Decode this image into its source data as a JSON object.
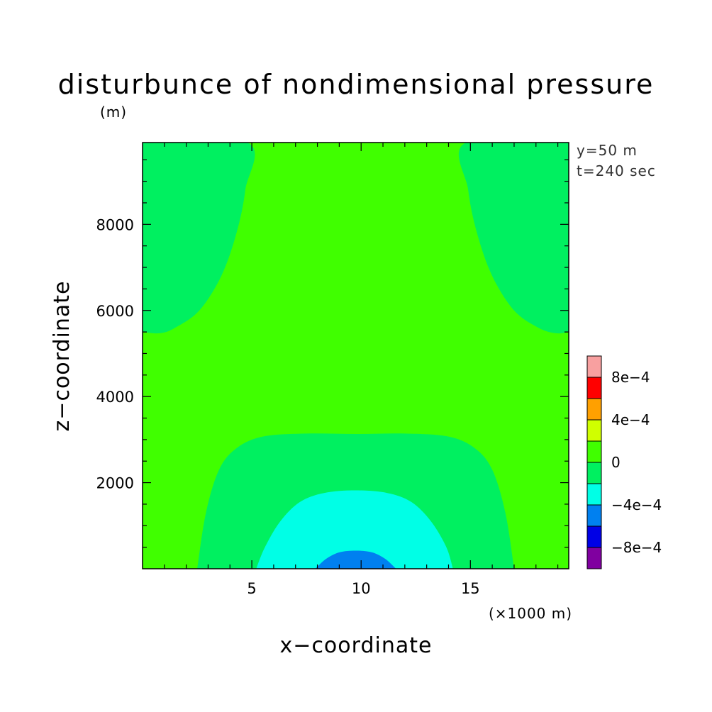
{
  "chart_data": {
    "type": "heatmap",
    "title": "disturbunce of nondimensional pressure",
    "y_unit_label": "(m)",
    "xlabel": "x−coordinate",
    "ylabel": "z−coordinate",
    "x_unit_label": "(×1000 m)",
    "annotations": [
      "y=50 m",
      "t=240 sec"
    ],
    "xlim": [
      0,
      19.5
    ],
    "ylim": [
      0,
      9900
    ],
    "x_ticks": [
      {
        "value": 5,
        "label": "5"
      },
      {
        "value": 10,
        "label": "10"
      },
      {
        "value": 15,
        "label": "15"
      }
    ],
    "y_ticks": [
      {
        "value": 2000,
        "label": "2000"
      },
      {
        "value": 4000,
        "label": "4000"
      },
      {
        "value": 6000,
        "label": "6000"
      },
      {
        "value": 8000,
        "label": "8000"
      }
    ],
    "colorbar": {
      "levels": [
        {
          "min": -0.001,
          "max": -0.0008,
          "color": "#8000a0"
        },
        {
          "min": -0.0008,
          "max": -0.0006,
          "color": "#0000e6"
        },
        {
          "min": -0.0006,
          "max": -0.0004,
          "color": "#0080f0"
        },
        {
          "min": -0.0004,
          "max": -0.0002,
          "color": "#00ffe6"
        },
        {
          "min": -0.0002,
          "max": 0,
          "color": "#00f060"
        },
        {
          "min": 0,
          "max": 0.0002,
          "color": "#40ff00"
        },
        {
          "min": 0.0002,
          "max": 0.0004,
          "color": "#d0ff00"
        },
        {
          "min": 0.0004,
          "max": 0.0006,
          "color": "#ffa000"
        },
        {
          "min": 0.0006,
          "max": 0.0008,
          "color": "#ff0000"
        },
        {
          "min": 0.0008,
          "max": 0.001,
          "color": "#f8a0a0"
        }
      ],
      "tick_labels": [
        {
          "value": -0.0008,
          "label": "−8e−4"
        },
        {
          "value": -0.0004,
          "label": "−4e−4"
        },
        {
          "value": 0,
          "label": "0"
        },
        {
          "value": 0.0004,
          "label": "4e−4"
        },
        {
          "value": 0.0008,
          "label": "8e−4"
        }
      ]
    },
    "regions": [
      {
        "level_index": 5,
        "description": "background, 0 to 2e-4",
        "boundary": [
          [
            0,
            0
          ],
          [
            19.5,
            0
          ],
          [
            19.5,
            9900
          ],
          [
            0,
            9900
          ]
        ]
      },
      {
        "level_index": 4,
        "description": "upper-left lobe",
        "boundary": [
          [
            0,
            9900
          ],
          [
            4.8,
            9900
          ],
          [
            4.7,
            8800
          ],
          [
            4.3,
            7800
          ],
          [
            3.6,
            6800
          ],
          [
            2.6,
            6000
          ],
          [
            1.5,
            5600
          ],
          [
            0.8,
            5470
          ],
          [
            0,
            5500
          ]
        ]
      },
      {
        "level_index": 4,
        "description": "upper-right lobe",
        "boundary": [
          [
            19.5,
            9900
          ],
          [
            14.8,
            9900
          ],
          [
            14.9,
            8800
          ],
          [
            15.3,
            7800
          ],
          [
            16.0,
            6800
          ],
          [
            17.0,
            6000
          ],
          [
            18.1,
            5600
          ],
          [
            18.9,
            5470
          ],
          [
            19.5,
            5500
          ]
        ]
      },
      {
        "level_index": 4,
        "description": "lower central dome",
        "boundary": [
          [
            2.5,
            0
          ],
          [
            2.9,
            1300
          ],
          [
            3.5,
            2300
          ],
          [
            4.3,
            2800
          ],
          [
            5.5,
            3070
          ],
          [
            7.5,
            3140
          ],
          [
            9.75,
            3130
          ],
          [
            12.0,
            3140
          ],
          [
            14.0,
            3070
          ],
          [
            15.2,
            2800
          ],
          [
            16.0,
            2300
          ],
          [
            16.6,
            1300
          ],
          [
            17.0,
            0
          ]
        ]
      },
      {
        "level_index": 3,
        "description": "cyan dome",
        "boundary": [
          [
            5.2,
            0
          ],
          [
            5.6,
            500
          ],
          [
            6.3,
            1100
          ],
          [
            7.2,
            1550
          ],
          [
            8.3,
            1760
          ],
          [
            9.75,
            1820
          ],
          [
            11.2,
            1760
          ],
          [
            12.3,
            1550
          ],
          [
            13.2,
            1100
          ],
          [
            13.9,
            500
          ],
          [
            14.2,
            0
          ]
        ]
      },
      {
        "level_index": 2,
        "description": "blue core",
        "boundary": [
          [
            7.9,
            0
          ],
          [
            8.4,
            230
          ],
          [
            9.0,
            380
          ],
          [
            9.75,
            420
          ],
          [
            10.5,
            380
          ],
          [
            11.1,
            230
          ],
          [
            11.6,
            0
          ]
        ]
      }
    ]
  }
}
